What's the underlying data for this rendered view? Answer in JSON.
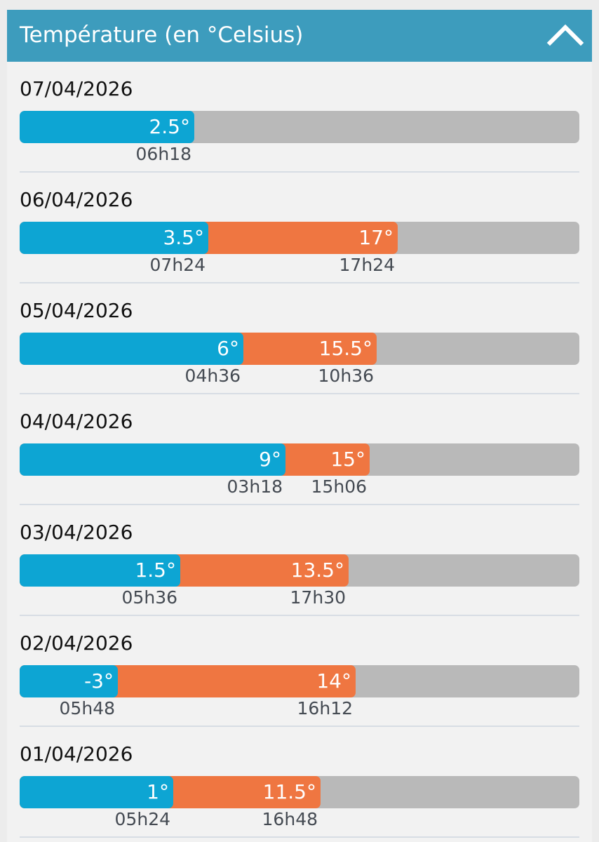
{
  "header": {
    "title": "Température (en °Celsius)",
    "collapse_icon": "chevron-up-icon"
  },
  "colors": {
    "header_bg": "#3d9cbd",
    "min_bar": "#0da5d3",
    "max_bar": "#ef7641",
    "track": "#b9b9b9"
  },
  "scale": {
    "min": -10,
    "max": 30
  },
  "days": [
    {
      "date": "07/04/2026",
      "min_label": "2.5°",
      "min_value": 2.5,
      "min_time": "06h18",
      "max_label": "",
      "max_value": null,
      "max_time": ""
    },
    {
      "date": "06/04/2026",
      "min_label": "3.5°",
      "min_value": 3.5,
      "min_time": "07h24",
      "max_label": "17°",
      "max_value": 17,
      "max_time": "17h24"
    },
    {
      "date": "05/04/2026",
      "min_label": "6°",
      "min_value": 6,
      "min_time": "04h36",
      "max_label": "15.5°",
      "max_value": 15.5,
      "max_time": "10h36"
    },
    {
      "date": "04/04/2026",
      "min_label": "9°",
      "min_value": 9,
      "min_time": "03h18",
      "max_label": "15°",
      "max_value": 15,
      "max_time": "15h06"
    },
    {
      "date": "03/04/2026",
      "min_label": "1.5°",
      "min_value": 1.5,
      "min_time": "05h36",
      "max_label": "13.5°",
      "max_value": 13.5,
      "max_time": "17h30"
    },
    {
      "date": "02/04/2026",
      "min_label": "-3°",
      "min_value": -3,
      "min_time": "05h48",
      "max_label": "14°",
      "max_value": 14,
      "max_time": "16h12"
    },
    {
      "date": "01/04/2026",
      "min_label": "1°",
      "min_value": 1,
      "min_time": "05h24",
      "max_label": "11.5°",
      "max_value": 11.5,
      "max_time": "16h48"
    }
  ]
}
